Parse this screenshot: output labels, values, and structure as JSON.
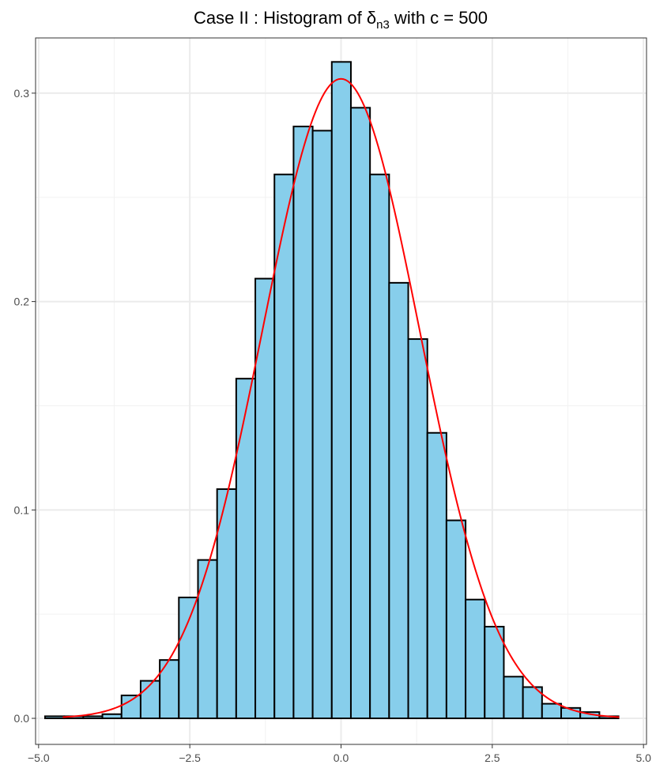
{
  "chart_data": {
    "type": "bar",
    "title": {
      "prefix": "Case II :  Histogram of ",
      "symbol": "δ",
      "subscript": "n3",
      "suffix": " with c = 500"
    },
    "xlabel": "",
    "ylabel": "",
    "xlim": [
      -5.05,
      5.05
    ],
    "ylim": [
      -0.0125,
      0.3265
    ],
    "x_ticks": [
      -5.0,
      -2.5,
      0.0,
      2.5,
      5.0
    ],
    "x_tick_labels": [
      "-5.0",
      "-2.5",
      "0.0",
      "2.5",
      "5.0"
    ],
    "y_ticks": [
      0.0,
      0.1,
      0.2,
      0.3
    ],
    "y_tick_labels": [
      "0.0",
      "0.1",
      "0.2",
      "0.3"
    ],
    "grid": true,
    "bin_width": 0.316,
    "bin_starts": [
      -4.893,
      -4.577,
      -4.261,
      -3.945,
      -3.629,
      -3.313,
      -2.997,
      -2.681,
      -2.365,
      -2.049,
      -1.733,
      -1.417,
      -1.101,
      -0.785,
      -0.469,
      -0.153,
      0.163,
      0.479,
      0.795,
      1.111,
      1.427,
      1.743,
      2.059,
      2.375,
      2.691,
      3.007,
      3.323,
      3.639,
      3.955,
      4.271
    ],
    "values": [
      0.001,
      0.001,
      0.001,
      0.002,
      0.011,
      0.018,
      0.028,
      0.058,
      0.076,
      0.11,
      0.163,
      0.211,
      0.261,
      0.284,
      0.282,
      0.315,
      0.293,
      0.261,
      0.209,
      0.182,
      0.137,
      0.095,
      0.057,
      0.044,
      0.02,
      0.015,
      0.007,
      0.005,
      0.003,
      0.001
    ],
    "bar_fill": "#87CEEB",
    "bar_stroke": "#000000",
    "density_curve": {
      "color": "#FF0000",
      "mean": 0.0,
      "sd": 1.3,
      "x_range": [
        -4.6,
        4.6
      ]
    }
  }
}
